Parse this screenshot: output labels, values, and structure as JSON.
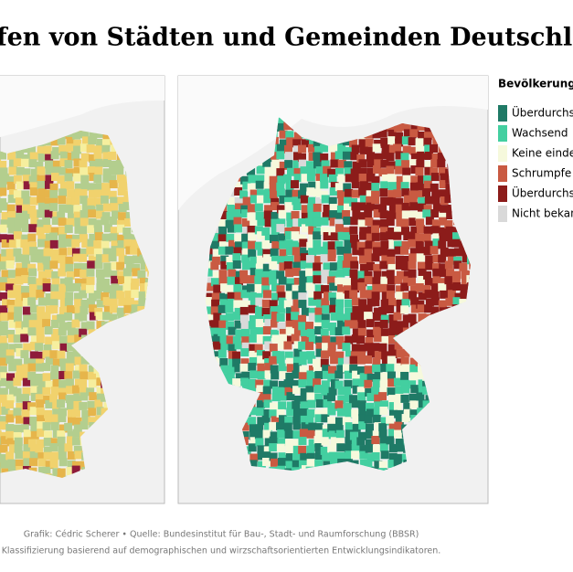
{
  "header": {
    "title": "fen von Städten und Gemeinden Deutschlands"
  },
  "legend": {
    "title": "Bevölkerung",
    "items": [
      {
        "label": "Überdurchs",
        "color": "#1f7a66"
      },
      {
        "label": "Wachsend",
        "color": "#43cfa0"
      },
      {
        "label": "Keine einde",
        "color": "#f6f9dc"
      },
      {
        "label": "Schrumpfe",
        "color": "#c95a42"
      },
      {
        "label": "Überdurchs",
        "color": "#8c1c1a"
      },
      {
        "label": "Nicht bekan",
        "color": "#d9d9d9"
      }
    ]
  },
  "footer": {
    "line1": "Grafik: Cédric Scherer  •  Quelle: Bundesinstitut für Bau-, Stadt- und Raumforschung (BBSR)",
    "line2": "Klassifizierung basierend auf demographischen und wirzschaftsorientierten Entwicklungsindikatoren."
  }
}
